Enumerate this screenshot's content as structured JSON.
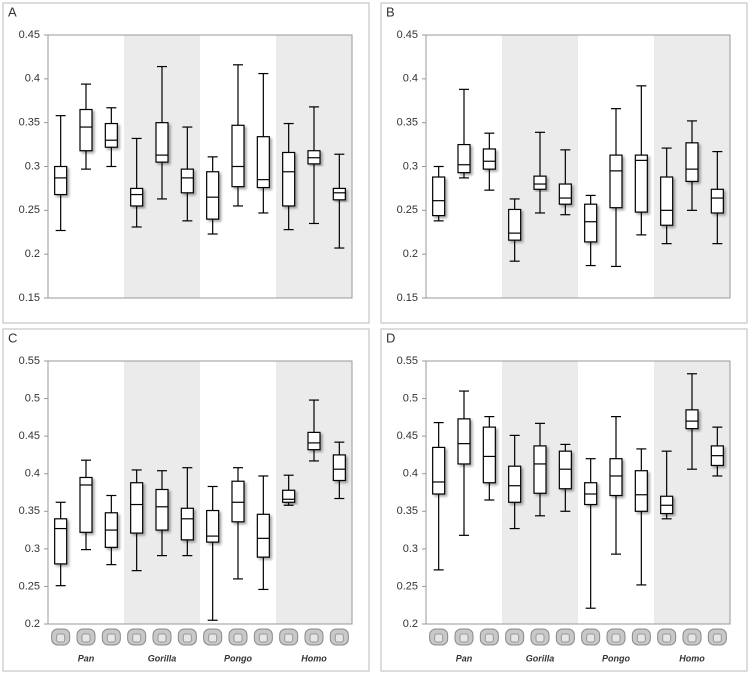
{
  "chart_data": [
    {
      "type": "box",
      "label": "A",
      "ylim": [
        0.15,
        0.45
      ],
      "yticks": [
        0.15,
        0.2,
        0.25,
        0.3,
        0.35,
        0.4,
        0.45
      ],
      "band_colors": [
        "#ffffff",
        "#ebebeb",
        "#ffffff",
        "#ebebeb"
      ],
      "boxes": [
        {
          "min": 0.227,
          "q1": 0.268,
          "median": 0.287,
          "q3": 0.3,
          "max": 0.358
        },
        {
          "min": 0.297,
          "q1": 0.318,
          "median": 0.345,
          "q3": 0.365,
          "max": 0.394
        },
        {
          "min": 0.3,
          "q1": 0.322,
          "median": 0.33,
          "q3": 0.349,
          "max": 0.367
        },
        {
          "min": 0.231,
          "q1": 0.255,
          "median": 0.268,
          "q3": 0.275,
          "max": 0.332
        },
        {
          "min": 0.263,
          "q1": 0.305,
          "median": 0.313,
          "q3": 0.35,
          "max": 0.414
        },
        {
          "min": 0.238,
          "q1": 0.27,
          "median": 0.287,
          "q3": 0.297,
          "max": 0.345
        },
        {
          "min": 0.223,
          "q1": 0.24,
          "median": 0.265,
          "q3": 0.294,
          "max": 0.311
        },
        {
          "min": 0.255,
          "q1": 0.277,
          "median": 0.3,
          "q3": 0.347,
          "max": 0.416
        },
        {
          "min": 0.247,
          "q1": 0.276,
          "median": 0.285,
          "q3": 0.334,
          "max": 0.406
        },
        {
          "min": 0.228,
          "q1": 0.255,
          "median": 0.294,
          "q3": 0.316,
          "max": 0.349
        },
        {
          "min": 0.235,
          "q1": 0.303,
          "median": 0.31,
          "q3": 0.318,
          "max": 0.368
        },
        {
          "min": 0.207,
          "q1": 0.262,
          "median": 0.27,
          "q3": 0.275,
          "max": 0.314
        }
      ]
    },
    {
      "type": "box",
      "label": "B",
      "ylim": [
        0.15,
        0.45
      ],
      "yticks": [
        0.15,
        0.2,
        0.25,
        0.3,
        0.35,
        0.4,
        0.45
      ],
      "band_colors": [
        "#ffffff",
        "#ebebeb",
        "#ffffff",
        "#ebebeb"
      ],
      "boxes": [
        {
          "min": 0.238,
          "q1": 0.244,
          "median": 0.261,
          "q3": 0.288,
          "max": 0.3
        },
        {
          "min": 0.287,
          "q1": 0.293,
          "median": 0.302,
          "q3": 0.325,
          "max": 0.388
        },
        {
          "min": 0.273,
          "q1": 0.297,
          "median": 0.306,
          "q3": 0.32,
          "max": 0.338
        },
        {
          "min": 0.192,
          "q1": 0.216,
          "median": 0.224,
          "q3": 0.251,
          "max": 0.263
        },
        {
          "min": 0.247,
          "q1": 0.274,
          "median": 0.28,
          "q3": 0.289,
          "max": 0.339
        },
        {
          "min": 0.245,
          "q1": 0.257,
          "median": 0.264,
          "q3": 0.28,
          "max": 0.319
        },
        {
          "min": 0.187,
          "q1": 0.214,
          "median": 0.237,
          "q3": 0.257,
          "max": 0.267
        },
        {
          "min": 0.186,
          "q1": 0.253,
          "median": 0.295,
          "q3": 0.313,
          "max": 0.366
        },
        {
          "min": 0.222,
          "q1": 0.248,
          "median": 0.307,
          "q3": 0.313,
          "max": 0.392
        },
        {
          "min": 0.212,
          "q1": 0.233,
          "median": 0.25,
          "q3": 0.288,
          "max": 0.321
        },
        {
          "min": 0.25,
          "q1": 0.283,
          "median": 0.297,
          "q3": 0.327,
          "max": 0.352
        },
        {
          "min": 0.212,
          "q1": 0.247,
          "median": 0.264,
          "q3": 0.274,
          "max": 0.317
        }
      ]
    },
    {
      "type": "box",
      "label": "C",
      "ylim": [
        0.2,
        0.55
      ],
      "yticks": [
        0.2,
        0.25,
        0.3,
        0.35,
        0.4,
        0.45,
        0.5,
        0.55
      ],
      "band_colors": [
        "#ffffff",
        "#ebebeb",
        "#ffffff",
        "#ebebeb"
      ],
      "groups": [
        "Pan",
        "Gorilla",
        "Pongo",
        "Homo"
      ],
      "boxes": [
        {
          "min": 0.251,
          "q1": 0.28,
          "median": 0.327,
          "q3": 0.34,
          "max": 0.362
        },
        {
          "min": 0.299,
          "q1": 0.322,
          "median": 0.385,
          "q3": 0.395,
          "max": 0.418
        },
        {
          "min": 0.279,
          "q1": 0.302,
          "median": 0.325,
          "q3": 0.348,
          "max": 0.371
        },
        {
          "min": 0.271,
          "q1": 0.321,
          "median": 0.359,
          "q3": 0.388,
          "max": 0.405
        },
        {
          "min": 0.291,
          "q1": 0.325,
          "median": 0.356,
          "q3": 0.379,
          "max": 0.404
        },
        {
          "min": 0.291,
          "q1": 0.312,
          "median": 0.34,
          "q3": 0.354,
          "max": 0.408
        },
        {
          "min": 0.205,
          "q1": 0.309,
          "median": 0.317,
          "q3": 0.351,
          "max": 0.383
        },
        {
          "min": 0.26,
          "q1": 0.336,
          "median": 0.362,
          "q3": 0.39,
          "max": 0.408
        },
        {
          "min": 0.246,
          "q1": 0.289,
          "median": 0.314,
          "q3": 0.346,
          "max": 0.397
        },
        {
          "min": 0.358,
          "q1": 0.362,
          "median": 0.366,
          "q3": 0.378,
          "max": 0.398
        },
        {
          "min": 0.417,
          "q1": 0.432,
          "median": 0.441,
          "q3": 0.455,
          "max": 0.498
        },
        {
          "min": 0.367,
          "q1": 0.391,
          "median": 0.406,
          "q3": 0.425,
          "max": 0.442
        }
      ]
    },
    {
      "type": "box",
      "label": "D",
      "ylim": [
        0.2,
        0.55
      ],
      "yticks": [
        0.2,
        0.25,
        0.3,
        0.35,
        0.4,
        0.45,
        0.5,
        0.55
      ],
      "band_colors": [
        "#ffffff",
        "#ebebeb",
        "#ffffff",
        "#ebebeb"
      ],
      "groups": [
        "Pan",
        "Gorilla",
        "Pongo",
        "Homo"
      ],
      "boxes": [
        {
          "min": 0.272,
          "q1": 0.373,
          "median": 0.389,
          "q3": 0.435,
          "max": 0.468
        },
        {
          "min": 0.318,
          "q1": 0.413,
          "median": 0.44,
          "q3": 0.473,
          "max": 0.51
        },
        {
          "min": 0.365,
          "q1": 0.388,
          "median": 0.423,
          "q3": 0.462,
          "max": 0.476
        },
        {
          "min": 0.327,
          "q1": 0.362,
          "median": 0.384,
          "q3": 0.41,
          "max": 0.451
        },
        {
          "min": 0.344,
          "q1": 0.374,
          "median": 0.413,
          "q3": 0.437,
          "max": 0.467
        },
        {
          "min": 0.35,
          "q1": 0.38,
          "median": 0.406,
          "q3": 0.43,
          "max": 0.439
        },
        {
          "min": 0.221,
          "q1": 0.359,
          "median": 0.373,
          "q3": 0.388,
          "max": 0.42
        },
        {
          "min": 0.293,
          "q1": 0.371,
          "median": 0.397,
          "q3": 0.42,
          "max": 0.476
        },
        {
          "min": 0.252,
          "q1": 0.35,
          "median": 0.372,
          "q3": 0.404,
          "max": 0.433
        },
        {
          "min": 0.34,
          "q1": 0.347,
          "median": 0.358,
          "q3": 0.37,
          "max": 0.43
        },
        {
          "min": 0.406,
          "q1": 0.46,
          "median": 0.47,
          "q3": 0.485,
          "max": 0.533
        },
        {
          "min": 0.397,
          "q1": 0.411,
          "median": 0.424,
          "q3": 0.437,
          "max": 0.462
        }
      ]
    }
  ]
}
